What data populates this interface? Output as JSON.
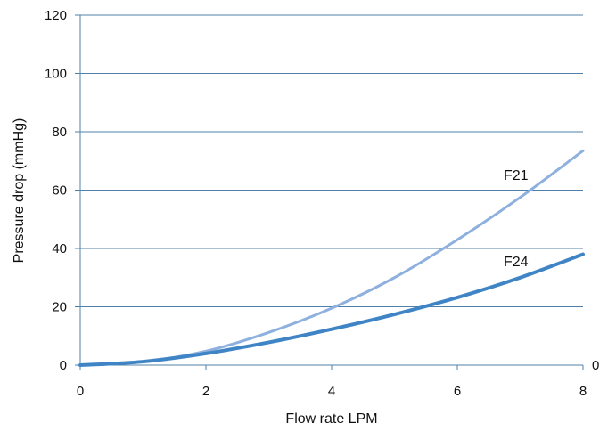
{
  "chart_data": {
    "type": "line",
    "title": "",
    "xlabel": "Flow rate LPM",
    "ylabel": "Pressure drop (mmHg)",
    "xlim": [
      0,
      8
    ],
    "ylim": [
      0,
      120
    ],
    "xticks": [
      0,
      2,
      4,
      6,
      8
    ],
    "yticks": [
      0,
      20,
      40,
      60,
      80,
      100,
      120
    ],
    "xtick_labels": [
      "0",
      "2",
      "4",
      "6",
      "8"
    ],
    "ytick_labels": [
      "0",
      "20",
      "40",
      "60",
      "80",
      "100",
      "120"
    ],
    "extra_right_label": "0",
    "grid": true,
    "series": [
      {
        "name": "F21",
        "color": "#8eb0df",
        "x": [
          0,
          1,
          2,
          3,
          4,
          5,
          6,
          7,
          8
        ],
        "y": [
          0,
          1.2,
          4.8,
          11.2,
          19.5,
          30.0,
          43.0,
          57.5,
          73.5
        ]
      },
      {
        "name": "F24",
        "color": "#3f84c5",
        "x": [
          0,
          1,
          2,
          3,
          4,
          5,
          6,
          7,
          8
        ],
        "y": [
          0,
          1.2,
          4.0,
          7.8,
          12.3,
          17.4,
          23.2,
          30.0,
          38.0
        ]
      }
    ]
  }
}
